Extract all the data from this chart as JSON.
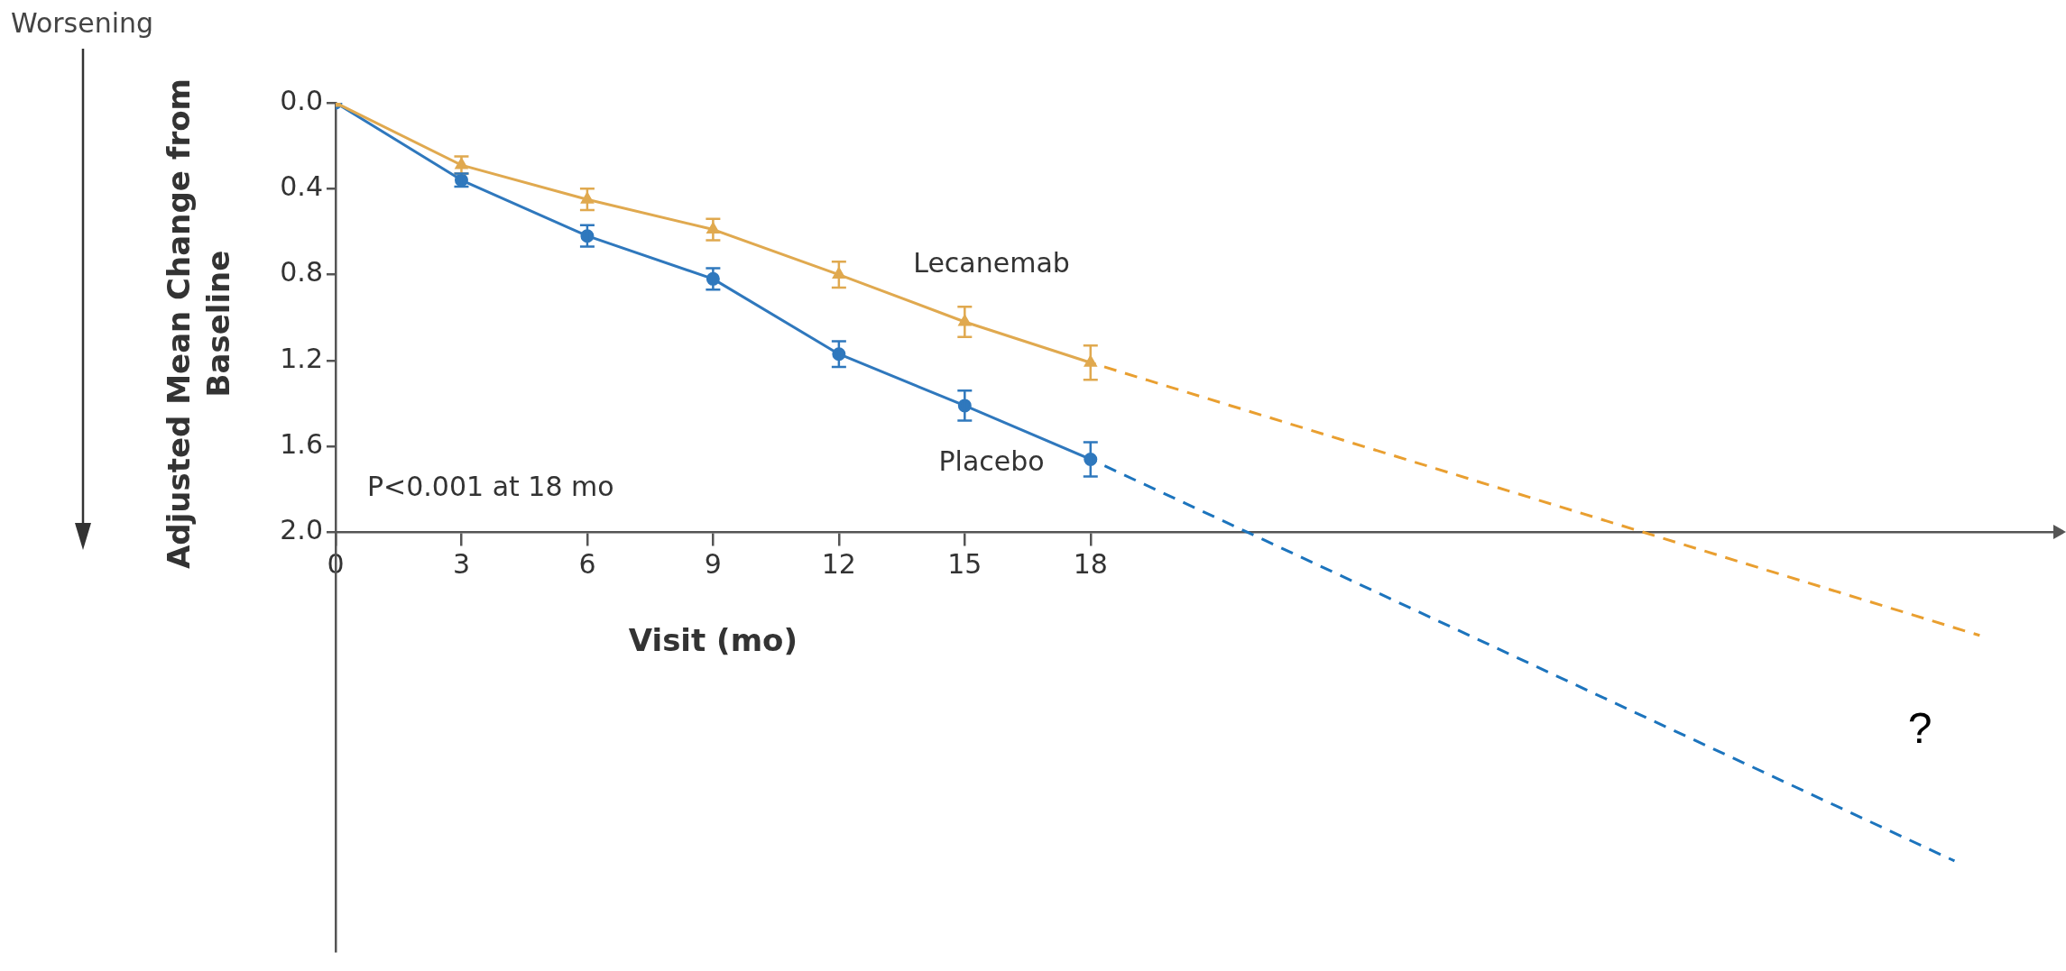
{
  "chart_data": {
    "type": "line",
    "xlabel": "Visit (mo)",
    "ylabel": "Adjusted Mean Change from Baseline",
    "annotations": [
      "Worsening",
      "P<0.001 at 18 mo",
      "?"
    ],
    "xlim": [
      0,
      41
    ],
    "ylim": [
      3.95,
      0
    ],
    "xticks": [
      0,
      3,
      6,
      9,
      12,
      15,
      18
    ],
    "yticks": [
      {
        "value": 0,
        "label": "0.0"
      },
      0.4,
      0.8,
      1.2,
      1.6,
      {
        "value": 2,
        "label": "2.0"
      }
    ],
    "legend": false,
    "grid": false,
    "series": [
      {
        "name": "Lecanemab",
        "color": "#e0a94f",
        "marker": "triangle",
        "line_style": "solid",
        "x": [
          0,
          3,
          6,
          9,
          12,
          15,
          18
        ],
        "values": [
          0,
          0.29,
          0.45,
          0.59,
          0.8,
          1.02,
          1.21
        ],
        "errors": [
          null,
          0.04,
          0.05,
          0.05,
          0.06,
          0.07,
          0.08
        ]
      },
      {
        "name": "Placebo",
        "color": "#2f78bd",
        "marker": "circle",
        "line_style": "solid",
        "x": [
          0,
          3,
          6,
          9,
          12,
          15,
          18
        ],
        "values": [
          0,
          0.36,
          0.62,
          0.82,
          1.17,
          1.41,
          1.66
        ],
        "errors": [
          null,
          0.03,
          0.05,
          0.05,
          0.06,
          0.07,
          0.08
        ]
      },
      {
        "color": "#e99f30",
        "marker": "none",
        "line_style": "dashed",
        "x": [
          18,
          39.2
        ],
        "values": [
          1.21,
          2.48
        ]
      },
      {
        "color": "#1c74bd",
        "marker": "none",
        "line_style": "dashed",
        "x": [
          18,
          38.6
        ],
        "values": [
          1.66,
          3.53
        ]
      }
    ]
  }
}
